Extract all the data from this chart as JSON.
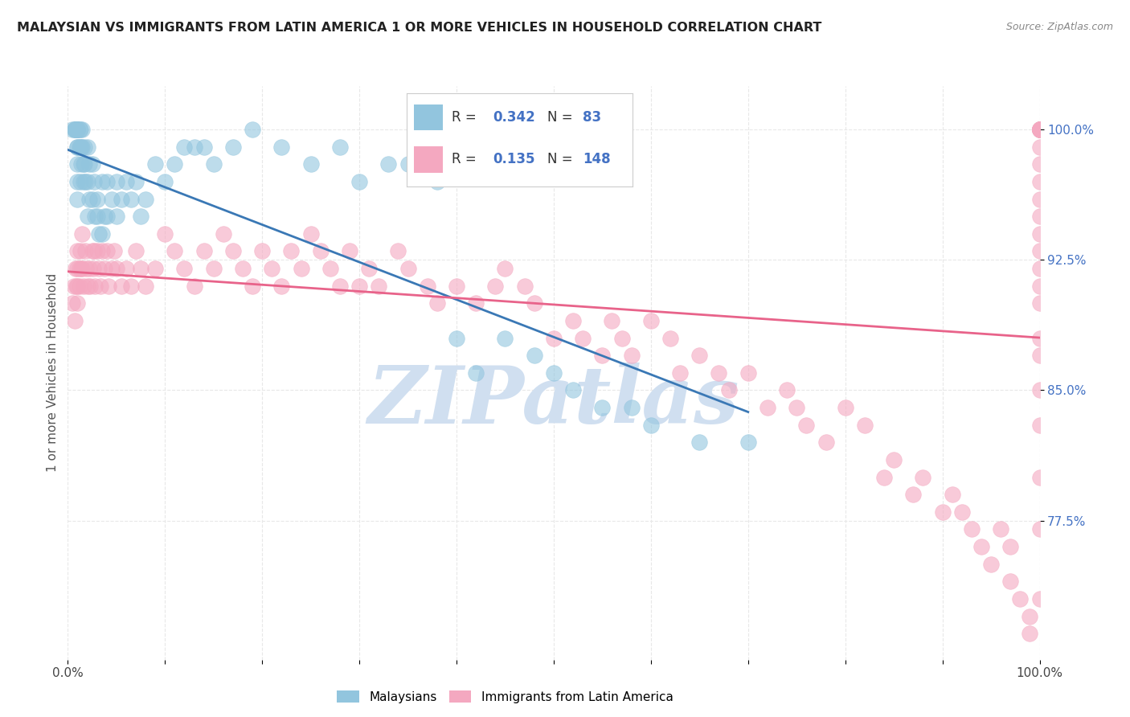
{
  "title": "MALAYSIAN VS IMMIGRANTS FROM LATIN AMERICA 1 OR MORE VEHICLES IN HOUSEHOLD CORRELATION CHART",
  "source": "Source: ZipAtlas.com",
  "ylabel": "1 or more Vehicles in Household",
  "xlim": [
    0.0,
    1.0
  ],
  "ylim": [
    0.695,
    1.025
  ],
  "yticks": [
    0.775,
    0.85,
    0.925,
    1.0
  ],
  "ytick_labels": [
    "77.5%",
    "85.0%",
    "92.5%",
    "100.0%"
  ],
  "xtick_positions": [
    0.0,
    0.1,
    0.2,
    0.3,
    0.4,
    0.5,
    0.6,
    0.7,
    0.8,
    0.9,
    1.0
  ],
  "xtick_labels": [
    "0.0%",
    "",
    "",
    "",
    "",
    "",
    "",
    "",
    "",
    "",
    "100.0%"
  ],
  "blue_r": "0.342",
  "blue_n": "83",
  "pink_r": "0.135",
  "pink_n": "148",
  "blue_color": "#92c5de",
  "pink_color": "#f4a8c0",
  "blue_line_color": "#3a78b5",
  "pink_line_color": "#e8638a",
  "blue_x": [
    0.005,
    0.007,
    0.007,
    0.008,
    0.008,
    0.009,
    0.009,
    0.01,
    0.01,
    0.01,
    0.01,
    0.01,
    0.01,
    0.01,
    0.01,
    0.01,
    0.012,
    0.012,
    0.013,
    0.013,
    0.013,
    0.014,
    0.014,
    0.015,
    0.015,
    0.016,
    0.016,
    0.017,
    0.017,
    0.018,
    0.02,
    0.02,
    0.02,
    0.022,
    0.022,
    0.025,
    0.025,
    0.027,
    0.028,
    0.03,
    0.03,
    0.032,
    0.035,
    0.035,
    0.038,
    0.04,
    0.04,
    0.045,
    0.05,
    0.05,
    0.055,
    0.06,
    0.065,
    0.07,
    0.075,
    0.08,
    0.09,
    0.1,
    0.11,
    0.12,
    0.13,
    0.14,
    0.15,
    0.17,
    0.19,
    0.22,
    0.25,
    0.28,
    0.3,
    0.33,
    0.35,
    0.38,
    0.4,
    0.42,
    0.45,
    0.48,
    0.5,
    0.52,
    0.55,
    0.58,
    0.6,
    0.65,
    0.7
  ],
  "blue_y": [
    1.0,
    1.0,
    1.0,
    1.0,
    1.0,
    1.0,
    1.0,
    1.0,
    1.0,
    1.0,
    1.0,
    0.99,
    0.99,
    0.98,
    0.97,
    0.96,
    1.0,
    0.99,
    1.0,
    0.99,
    0.97,
    0.99,
    0.98,
    1.0,
    0.99,
    0.98,
    0.97,
    0.99,
    0.98,
    0.97,
    0.99,
    0.97,
    0.95,
    0.98,
    0.96,
    0.98,
    0.96,
    0.97,
    0.95,
    0.96,
    0.95,
    0.94,
    0.97,
    0.94,
    0.95,
    0.97,
    0.95,
    0.96,
    0.97,
    0.95,
    0.96,
    0.97,
    0.96,
    0.97,
    0.95,
    0.96,
    0.98,
    0.97,
    0.98,
    0.99,
    0.99,
    0.99,
    0.98,
    0.99,
    1.0,
    0.99,
    0.98,
    0.99,
    0.97,
    0.98,
    0.98,
    0.97,
    0.88,
    0.86,
    0.88,
    0.87,
    0.86,
    0.85,
    0.84,
    0.84,
    0.83,
    0.82,
    0.82
  ],
  "pink_x": [
    0.005,
    0.006,
    0.007,
    0.008,
    0.009,
    0.01,
    0.01,
    0.01,
    0.01,
    0.012,
    0.012,
    0.013,
    0.014,
    0.015,
    0.015,
    0.016,
    0.018,
    0.019,
    0.02,
    0.022,
    0.023,
    0.025,
    0.026,
    0.027,
    0.028,
    0.03,
    0.032,
    0.034,
    0.035,
    0.038,
    0.04,
    0.042,
    0.045,
    0.048,
    0.05,
    0.055,
    0.06,
    0.065,
    0.07,
    0.075,
    0.08,
    0.09,
    0.1,
    0.11,
    0.12,
    0.13,
    0.14,
    0.15,
    0.16,
    0.17,
    0.18,
    0.19,
    0.2,
    0.21,
    0.22,
    0.23,
    0.24,
    0.25,
    0.26,
    0.27,
    0.28,
    0.29,
    0.3,
    0.31,
    0.32,
    0.34,
    0.35,
    0.37,
    0.38,
    0.4,
    0.42,
    0.44,
    0.45,
    0.47,
    0.48,
    0.5,
    0.52,
    0.53,
    0.55,
    0.56,
    0.57,
    0.58,
    0.6,
    0.62,
    0.63,
    0.65,
    0.67,
    0.68,
    0.7,
    0.72,
    0.74,
    0.75,
    0.76,
    0.78,
    0.8,
    0.82,
    0.84,
    0.85,
    0.87,
    0.88,
    0.9,
    0.91,
    0.92,
    0.93,
    0.94,
    0.95,
    0.96,
    0.97,
    0.97,
    0.98,
    0.99,
    0.99,
    1.0,
    1.0,
    1.0,
    1.0,
    1.0,
    1.0,
    1.0,
    1.0,
    1.0,
    1.0,
    1.0,
    1.0,
    1.0,
    1.0,
    1.0,
    1.0,
    1.0,
    1.0,
    1.0,
    1.0,
    1.0,
    1.0,
    1.0,
    1.0,
    1.0,
    1.0,
    1.0,
    1.0,
    1.0,
    1.0,
    1.0,
    1.0,
    1.0
  ],
  "pink_y": [
    0.9,
    0.91,
    0.89,
    0.92,
    0.91,
    0.93,
    0.92,
    0.91,
    0.9,
    0.92,
    0.91,
    0.93,
    0.92,
    0.94,
    0.92,
    0.91,
    0.93,
    0.92,
    0.91,
    0.92,
    0.91,
    0.93,
    0.92,
    0.93,
    0.91,
    0.93,
    0.92,
    0.91,
    0.93,
    0.92,
    0.93,
    0.91,
    0.92,
    0.93,
    0.92,
    0.91,
    0.92,
    0.91,
    0.93,
    0.92,
    0.91,
    0.92,
    0.94,
    0.93,
    0.92,
    0.91,
    0.93,
    0.92,
    0.94,
    0.93,
    0.92,
    0.91,
    0.93,
    0.92,
    0.91,
    0.93,
    0.92,
    0.94,
    0.93,
    0.92,
    0.91,
    0.93,
    0.91,
    0.92,
    0.91,
    0.93,
    0.92,
    0.91,
    0.9,
    0.91,
    0.9,
    0.91,
    0.92,
    0.91,
    0.9,
    0.88,
    0.89,
    0.88,
    0.87,
    0.89,
    0.88,
    0.87,
    0.89,
    0.88,
    0.86,
    0.87,
    0.86,
    0.85,
    0.86,
    0.84,
    0.85,
    0.84,
    0.83,
    0.82,
    0.84,
    0.83,
    0.8,
    0.81,
    0.79,
    0.8,
    0.78,
    0.79,
    0.78,
    0.77,
    0.76,
    0.75,
    0.77,
    0.76,
    0.74,
    0.73,
    0.72,
    0.71,
    0.73,
    0.77,
    0.8,
    0.83,
    0.85,
    0.87,
    0.88,
    0.9,
    0.91,
    0.92,
    0.93,
    0.94,
    0.95,
    0.96,
    0.97,
    0.98,
    0.99,
    1.0,
    1.0,
    1.0,
    1.0,
    1.0,
    1.0,
    1.0,
    1.0,
    1.0,
    1.0,
    1.0,
    1.0,
    1.0,
    1.0,
    1.0,
    1.0
  ],
  "background_color": "#ffffff",
  "grid_color": "#e8e8e8",
  "watermark_color": "#d0dff0"
}
